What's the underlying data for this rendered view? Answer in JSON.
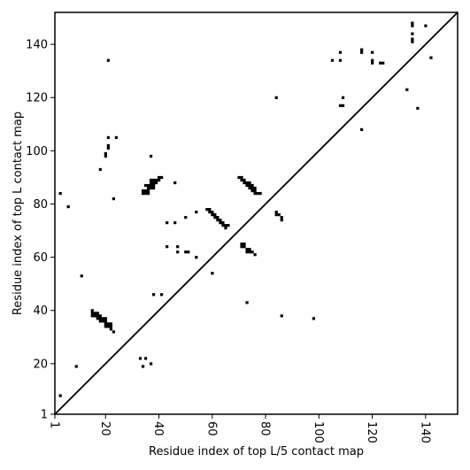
{
  "chart_data": {
    "type": "scatter",
    "title": "",
    "xlabel": "Residue index of top L/5 contact map",
    "ylabel": "Residue index of top L contact map",
    "xlim": [
      1,
      152
    ],
    "ylim": [
      1,
      152
    ],
    "xticks": [
      1,
      20,
      40,
      60,
      80,
      100,
      120,
      140
    ],
    "yticks": [
      1,
      20,
      40,
      60,
      80,
      100,
      120,
      140
    ],
    "xtick_labels": [
      "1",
      "20",
      "40",
      "60",
      "80",
      "100",
      "120",
      "140"
    ],
    "ytick_labels": [
      "1",
      "20",
      "40",
      "60",
      "80",
      "100",
      "120",
      "140"
    ],
    "x_tick_rotation_deg": -90,
    "grid": false,
    "legend": "none",
    "colors": {
      "marks": "#000000",
      "diagonal": "#000000",
      "frame": "#000000",
      "background": "#ffffff"
    },
    "diagonal_line": {
      "from": [
        1,
        1
      ],
      "to": [
        152,
        152
      ]
    },
    "series": [
      {
        "role": "upper-left (top L contacts)",
        "points": [
          [
            3,
            84
          ],
          [
            6,
            79
          ],
          [
            11,
            53
          ],
          [
            21,
            134
          ],
          [
            21,
            105
          ],
          [
            21,
            102
          ],
          [
            21,
            101
          ],
          [
            20,
            99
          ],
          [
            20,
            98
          ],
          [
            24,
            105
          ],
          [
            18,
            93
          ],
          [
            23,
            82
          ],
          [
            37,
            98
          ],
          [
            46,
            88
          ],
          [
            34,
            84
          ],
          [
            34,
            85
          ],
          [
            35,
            84
          ],
          [
            35,
            85
          ],
          [
            36,
            84
          ],
          [
            36,
            85
          ],
          [
            35,
            87
          ],
          [
            36,
            87
          ],
          [
            36,
            86
          ],
          [
            37,
            86
          ],
          [
            37,
            87
          ],
          [
            37,
            88
          ],
          [
            37,
            89
          ],
          [
            38,
            86
          ],
          [
            38,
            87
          ],
          [
            38,
            88
          ],
          [
            38,
            89
          ],
          [
            39,
            88
          ],
          [
            39,
            89
          ],
          [
            40,
            89
          ],
          [
            40,
            90
          ],
          [
            41,
            90
          ],
          [
            43,
            73
          ],
          [
            46,
            73
          ],
          [
            50,
            75
          ],
          [
            54,
            77
          ],
          [
            58,
            78
          ],
          [
            59,
            78
          ],
          [
            59,
            77
          ],
          [
            60,
            76
          ],
          [
            60,
            77
          ],
          [
            61,
            75
          ],
          [
            61,
            76
          ],
          [
            62,
            74
          ],
          [
            62,
            75
          ],
          [
            63,
            73
          ],
          [
            63,
            74
          ],
          [
            64,
            72
          ],
          [
            64,
            73
          ],
          [
            65,
            72
          ],
          [
            65,
            71
          ],
          [
            66,
            72
          ],
          [
            70,
            90
          ],
          [
            71,
            90
          ],
          [
            71,
            89
          ],
          [
            72,
            88
          ],
          [
            72,
            89
          ],
          [
            73,
            88
          ],
          [
            73,
            87
          ],
          [
            74,
            86
          ],
          [
            74,
            87
          ],
          [
            74,
            88
          ],
          [
            75,
            85
          ],
          [
            75,
            86
          ],
          [
            75,
            87
          ],
          [
            76,
            84
          ],
          [
            76,
            85
          ],
          [
            76,
            86
          ],
          [
            77,
            84
          ],
          [
            78,
            84
          ],
          [
            84,
            77
          ],
          [
            84,
            76
          ],
          [
            85,
            76
          ],
          [
            86,
            75
          ],
          [
            86,
            74
          ],
          [
            84,
            120
          ],
          [
            105,
            134
          ],
          [
            108,
            137
          ],
          [
            108,
            134
          ],
          [
            108,
            117
          ],
          [
            109,
            117
          ],
          [
            109,
            120
          ],
          [
            116,
            138
          ],
          [
            116,
            137
          ],
          [
            116,
            108
          ],
          [
            120,
            137
          ],
          [
            120,
            134
          ],
          [
            120,
            133
          ],
          [
            123,
            133
          ],
          [
            124,
            133
          ],
          [
            133,
            123
          ],
          [
            135,
            148
          ],
          [
            135,
            147
          ],
          [
            135,
            144
          ],
          [
            135,
            142
          ],
          [
            135,
            141
          ],
          [
            137,
            116
          ],
          [
            140,
            147
          ],
          [
            142,
            135
          ]
        ]
      },
      {
        "role": "lower-right (top L/5 contacts)",
        "points": [
          [
            3,
            8
          ],
          [
            9,
            19
          ],
          [
            15,
            40
          ],
          [
            15,
            39
          ],
          [
            15,
            38
          ],
          [
            16,
            38
          ],
          [
            16,
            39
          ],
          [
            17,
            37
          ],
          [
            17,
            38
          ],
          [
            17,
            39
          ],
          [
            18,
            36
          ],
          [
            18,
            37
          ],
          [
            18,
            38
          ],
          [
            19,
            36
          ],
          [
            19,
            37
          ],
          [
            20,
            34
          ],
          [
            20,
            35
          ],
          [
            20,
            36
          ],
          [
            20,
            37
          ],
          [
            21,
            34
          ],
          [
            21,
            35
          ],
          [
            22,
            33
          ],
          [
            22,
            34
          ],
          [
            22,
            35
          ],
          [
            23,
            32
          ],
          [
            33,
            22
          ],
          [
            35,
            22
          ],
          [
            34,
            19
          ],
          [
            37,
            20
          ],
          [
            38,
            46
          ],
          [
            41,
            46
          ],
          [
            43,
            64
          ],
          [
            47,
            64
          ],
          [
            47,
            62
          ],
          [
            50,
            62
          ],
          [
            51,
            62
          ],
          [
            54,
            60
          ],
          [
            60,
            54
          ],
          [
            71,
            64
          ],
          [
            71,
            65
          ],
          [
            72,
            64
          ],
          [
            72,
            65
          ],
          [
            73,
            63
          ],
          [
            74,
            63
          ],
          [
            73,
            62
          ],
          [
            74,
            62
          ],
          [
            75,
            62
          ],
          [
            76,
            61
          ],
          [
            73,
            43
          ],
          [
            86,
            38
          ],
          [
            98,
            37
          ]
        ]
      }
    ]
  }
}
